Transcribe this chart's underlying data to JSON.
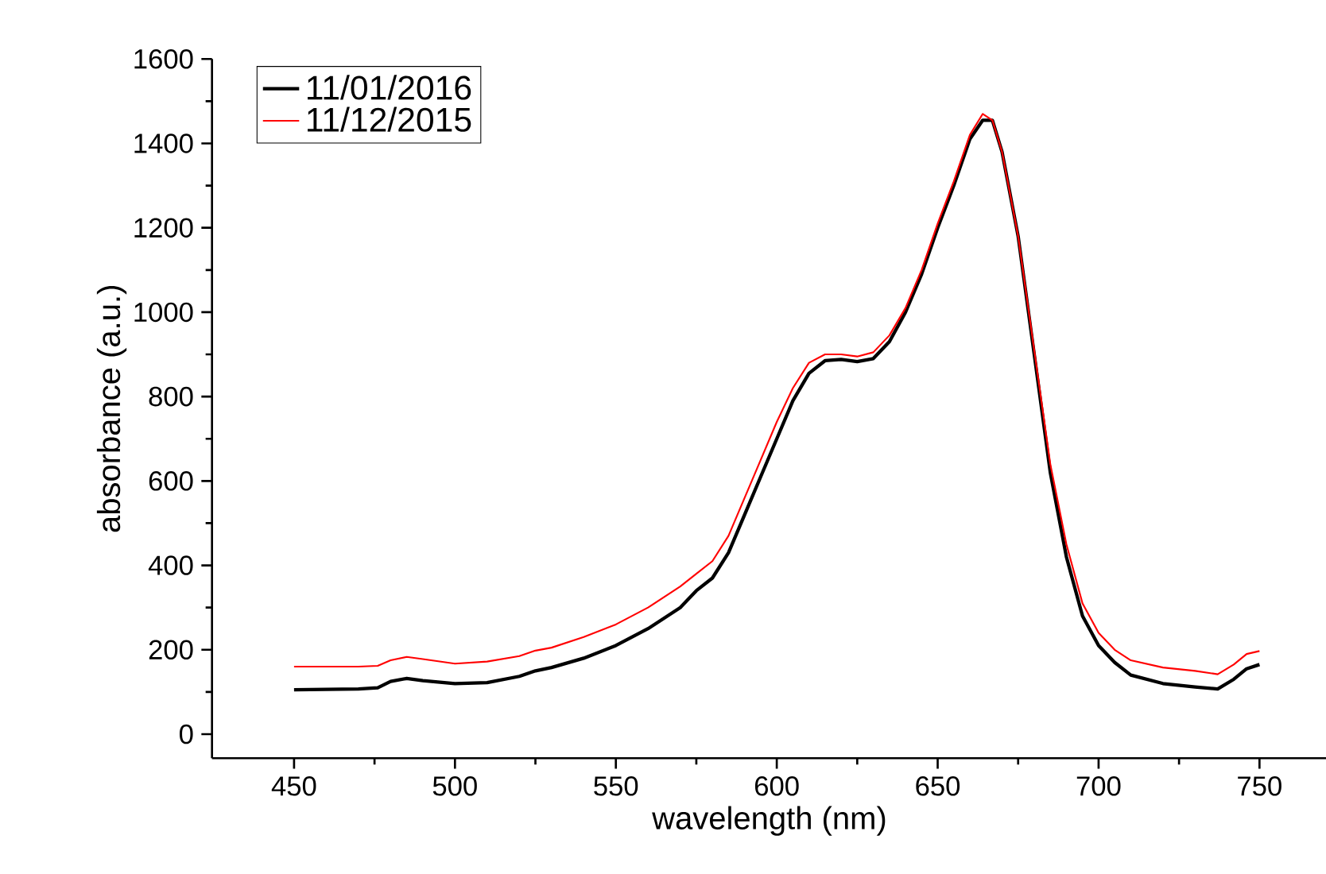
{
  "chart_data": {
    "type": "line",
    "xlabel": "wavelength (nm)",
    "ylabel": "absorbance (a.u.)",
    "legend": "top left",
    "x": [
      450,
      460,
      470,
      476,
      480,
      485,
      490,
      500,
      510,
      520,
      525,
      530,
      540,
      550,
      560,
      570,
      575,
      580,
      585,
      590,
      595,
      600,
      605,
      610,
      615,
      620,
      625,
      630,
      635,
      640,
      645,
      650,
      655,
      660,
      664,
      667,
      670,
      675,
      680,
      685,
      690,
      695,
      700,
      705,
      710,
      720,
      730,
      737,
      742,
      746,
      750
    ],
    "xlim": [
      424.5,
      771
    ],
    "ylim": [
      -57,
      1600
    ],
    "xticks": [
      450,
      500,
      550,
      600,
      650,
      700,
      750
    ],
    "yticks": [
      0,
      200,
      400,
      600,
      800,
      1000,
      1200,
      1400,
      1600
    ],
    "series": [
      {
        "name": "11/01/2016",
        "color": "#000000",
        "values": [
          105,
          106,
          107,
          110,
          125,
          132,
          127,
          120,
          122,
          137,
          150,
          158,
          180,
          210,
          250,
          300,
          340,
          370,
          430,
          520,
          610,
          700,
          790,
          855,
          885,
          888,
          883,
          890,
          930,
          1000,
          1090,
          1200,
          1300,
          1410,
          1455,
          1455,
          1380,
          1180,
          900,
          620,
          420,
          280,
          210,
          170,
          140,
          120,
          112,
          107,
          130,
          155,
          165
        ]
      },
      {
        "name": "11/12/2015",
        "color": "#ff0000",
        "values": [
          160,
          160,
          160,
          162,
          175,
          183,
          178,
          167,
          172,
          185,
          198,
          205,
          230,
          260,
          300,
          350,
          380,
          410,
          470,
          560,
          650,
          740,
          820,
          880,
          900,
          900,
          895,
          905,
          945,
          1010,
          1100,
          1210,
          1310,
          1420,
          1470,
          1455,
          1380,
          1180,
          910,
          640,
          450,
          310,
          240,
          200,
          175,
          158,
          150,
          142,
          165,
          190,
          197
        ]
      }
    ]
  }
}
